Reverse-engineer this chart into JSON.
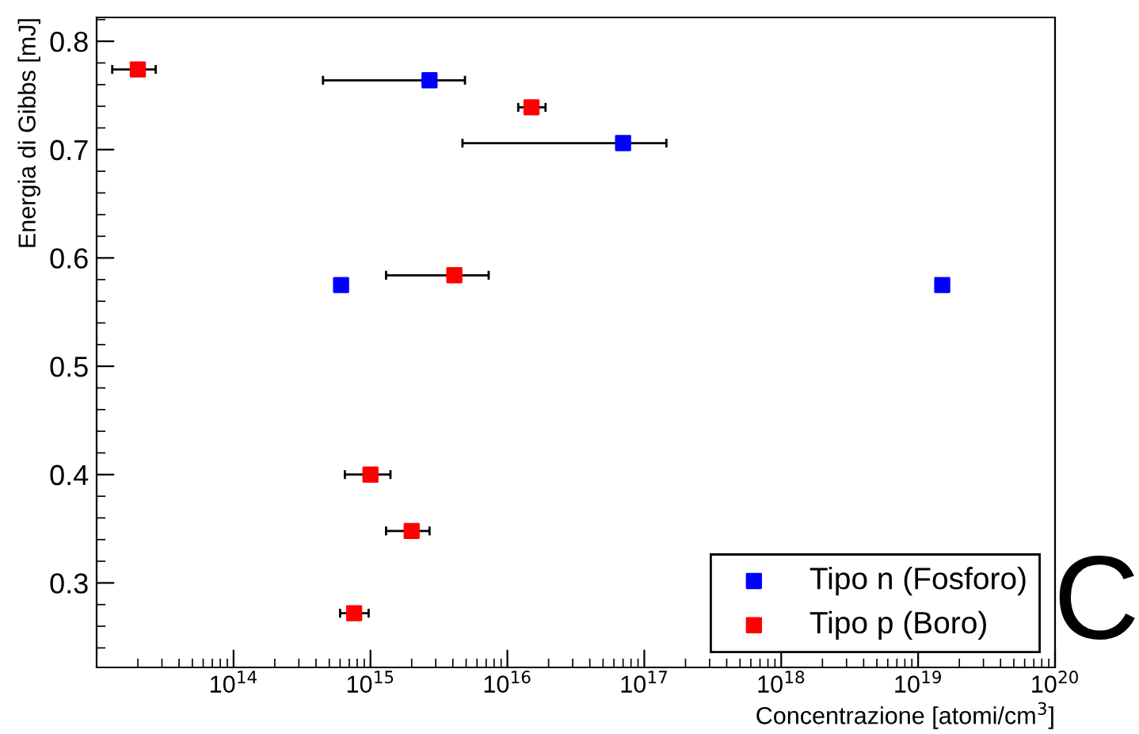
{
  "chart_data": {
    "type": "scatter",
    "xlabel": "Concentrazione [atomi/cm$^{3}$]",
    "ylabel": "Energia di Gibbs [mJ]",
    "log": "x",
    "xlim": [
      10000000000000.0,
      1e+20
    ],
    "ylim": [
      0.222,
      0.822
    ],
    "xticks": [
      {
        "value": 100000000000000.0,
        "label": "10$^{14}$"
      },
      {
        "value": 1000000000000000.0,
        "label": "10$^{15}$"
      },
      {
        "value": 1e+16,
        "label": "10$^{16}$"
      },
      {
        "value": 1e+17,
        "label": "10$^{17}$"
      },
      {
        "value": 1e+18,
        "label": "10$^{18}$"
      },
      {
        "value": 1e+19,
        "label": "10$^{19}$"
      },
      {
        "value": 1e+20,
        "label": "10$^{20}$"
      }
    ],
    "yticks": [
      0.3,
      0.4,
      0.5,
      0.6,
      0.7,
      0.8
    ],
    "series": [
      {
        "name": "Tipo n (Fosforo)",
        "color": "#0000ff",
        "x": [
          2700000000000000.0,
          7e+16,
          610000000000000.0,
          1.5e+19
        ],
        "values": [
          0.764,
          0.706,
          0.575,
          0.575
        ],
        "xerrors": [
          [
            450000000000000.0,
            4900000000000000.0
          ],
          [
            4700000000000000.0,
            1.45e+17
          ],
          null,
          null
        ]
      },
      {
        "name": "Tipo p (Boro)",
        "color": "#ff0000",
        "x": [
          20000000000000.0,
          1.5e+16,
          4100000000000000.0,
          1000000000000000.0,
          2000000000000000.0,
          760000000000000.0
        ],
        "values": [
          0.774,
          0.739,
          0.584,
          0.4,
          0.348,
          0.272
        ],
        "xerrors": [
          [
            13000000000000.0,
            27000000000000.0
          ],
          [
            1.2e+16,
            1.9e+16
          ],
          [
            1300000000000000.0,
            7300000000000000.0
          ],
          [
            650000000000000.0,
            1400000000000000.0
          ],
          [
            1300000000000000.0,
            2700000000000000.0
          ],
          [
            600000000000000.0,
            970000000000000.0
          ]
        ]
      }
    ],
    "marker": "square",
    "grid": false,
    "legend": "bottom right",
    "annotations": [
      "C"
    ]
  }
}
